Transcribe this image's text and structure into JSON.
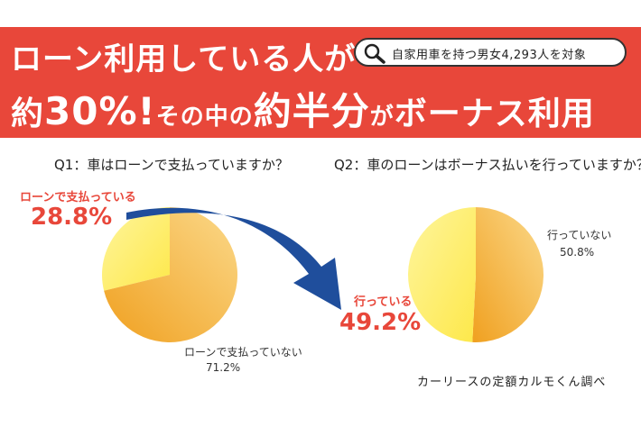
{
  "header": {
    "headline_line1": "ローン利用している人が",
    "headline_line2_prefix": "約",
    "headline_line2_big": "30%!",
    "headline_line2_mid": "その中の",
    "headline_line2_big2": "約半分",
    "headline_line2_mid2": "が",
    "headline_line2_end": "ボーナス利用",
    "badge_text": "自家用車を持つ男女4,293人を対象",
    "badge_icon": "magnifier-icon",
    "banner_color": "#e8473a"
  },
  "chart_data": [
    {
      "type": "pie",
      "title": "Q1：車はローンで支払っていますか？",
      "slices": [
        {
          "label": "ローンで支払っている",
          "value": 28.8,
          "value_text": "28.8%",
          "color": "#fff176"
        },
        {
          "label": "ローンで支払っていない",
          "value": 71.2,
          "value_text": "71.2%",
          "color": "#f5a623"
        }
      ]
    },
    {
      "type": "pie",
      "title": "Q2：車のローンはボーナス払いを行っていますか？",
      "slices": [
        {
          "label": "行っている",
          "value": 49.2,
          "value_text": "49.2%",
          "color": "#fff176"
        },
        {
          "label": "行っていない",
          "value": 50.8,
          "value_text": "50.8%",
          "color": "#f5a623"
        }
      ]
    }
  ],
  "footer": {
    "credit": "カーリースの定額カルモくん調べ"
  },
  "arrow_color": "#1f4e9c"
}
